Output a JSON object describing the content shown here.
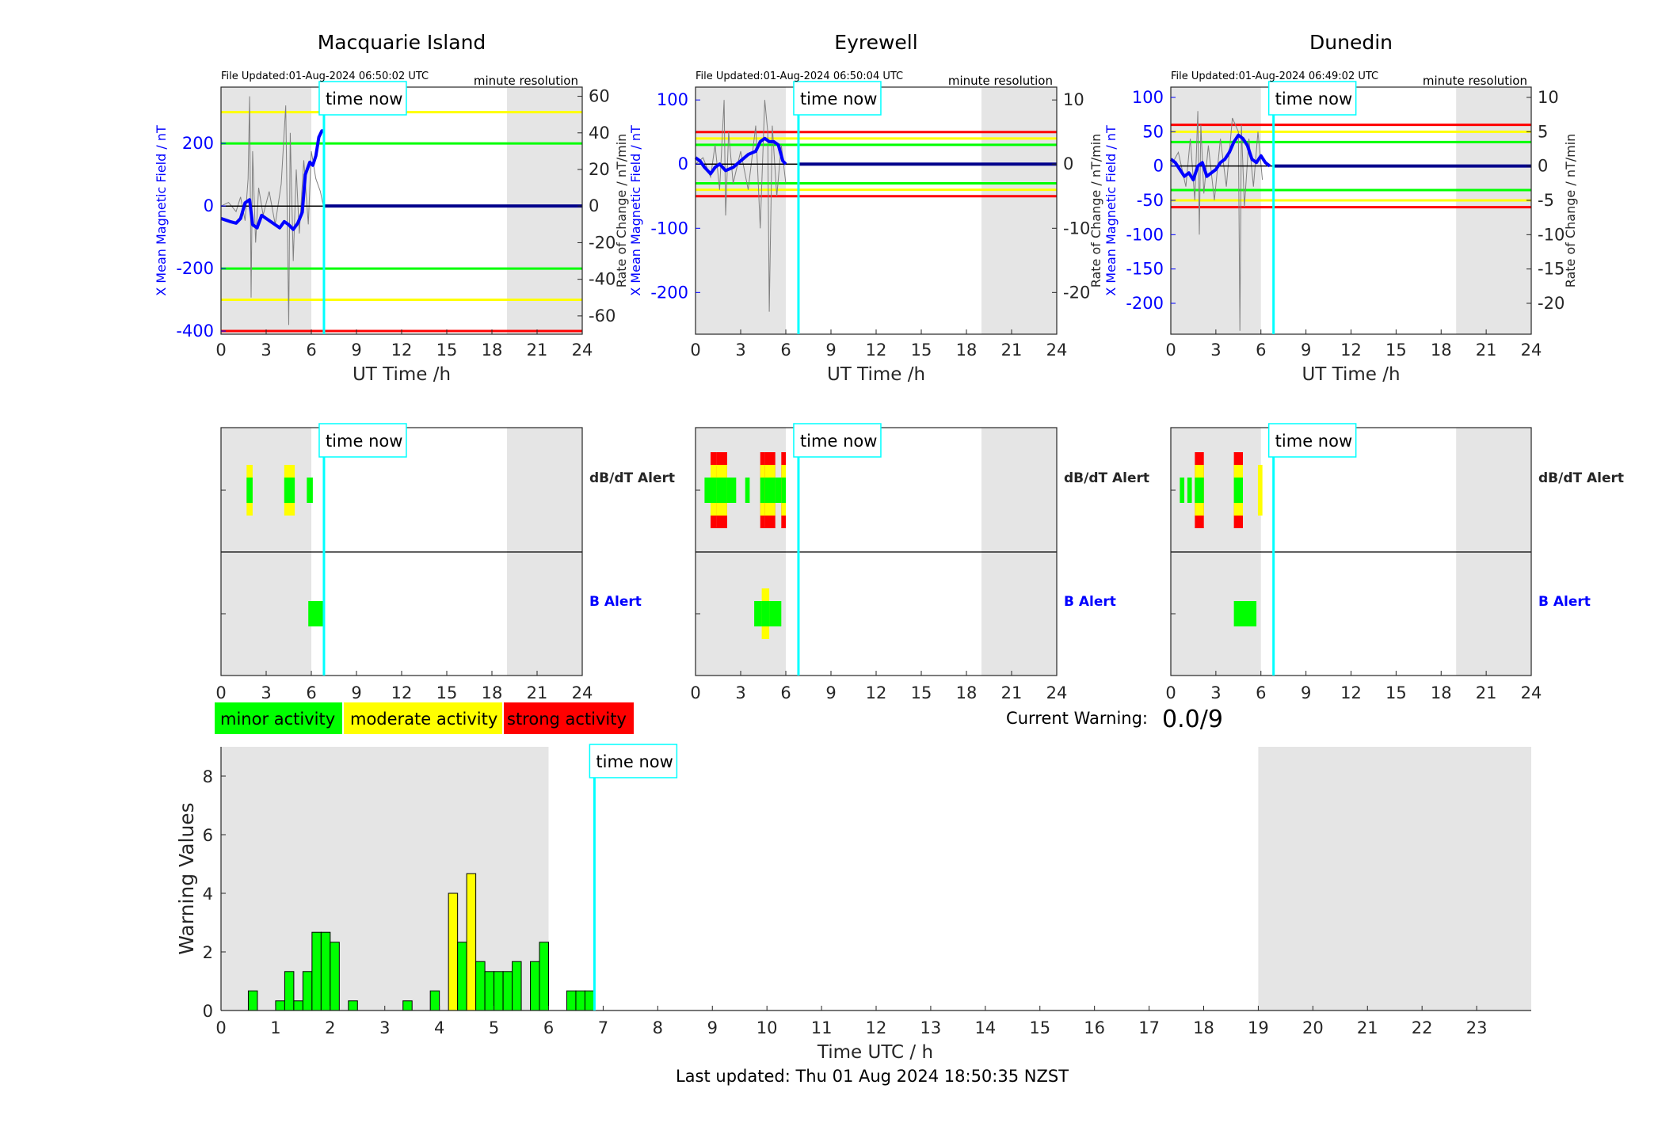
{
  "time_now_label": "time now",
  "time_now_hour": 6.84,
  "night_shading": [
    [
      0,
      6
    ],
    [
      19,
      24
    ]
  ],
  "stations": [
    {
      "name": "Macquarie Island",
      "file_updated": "File Updated:01-Aug-2024 06:50:02 UTC",
      "resolution": "minute resolution",
      "left_ylabel": "X Mean Magnetic Field / nT",
      "right_ylabel": "Rate of Change / nT/min",
      "xlabel": "UT Time /h",
      "dbdt_label": "dB/dT Alert",
      "b_label": "B Alert"
    },
    {
      "name": "Eyrewell",
      "file_updated": "File Updated:01-Aug-2024 06:50:04 UTC",
      "resolution": "minute resolution",
      "left_ylabel": "X Mean Magnetic Field / nT",
      "right_ylabel": "Rate of Change / nT/min",
      "xlabel": "UT Time /h",
      "dbdt_label": "dB/dT Alert",
      "b_label": "B Alert"
    },
    {
      "name": "Dunedin",
      "file_updated": "File Updated:01-Aug-2024 06:49:02 UTC",
      "resolution": "minute resolution",
      "left_ylabel": "X Mean Magnetic Field / nT",
      "right_ylabel": "Rate of Change / nT/min",
      "xlabel": "UT Time /h",
      "dbdt_label": "dB/dT Alert",
      "b_label": "B Alert"
    }
  ],
  "legend": {
    "minor": "minor activity",
    "moderate": "moderate activity",
    "strong": "strong activity",
    "colors": {
      "minor": "#00ff00",
      "moderate": "#ffff00",
      "strong": "#ff0000"
    }
  },
  "current_warning": {
    "label": "Current Warning:",
    "value": "0.0/9"
  },
  "warning_chart": {
    "xlabel": "Time UTC / h",
    "ylabel": "Warning Values"
  },
  "last_updated": "Last updated: Thu 01 Aug 2024 18:50:35 NZST",
  "chart_data": [
    {
      "type": "line",
      "station": "Macquarie Island",
      "xlim": [
        0,
        24
      ],
      "xticks": [
        0,
        3,
        6,
        9,
        12,
        15,
        18,
        21,
        24
      ],
      "ylim_left": [
        -410,
        380
      ],
      "yticks_left": [
        -400,
        -200,
        0,
        200
      ],
      "ylim_right": [
        -70,
        65
      ],
      "yticks_right": [
        -60,
        -40,
        -20,
        0,
        20,
        40,
        60
      ],
      "thresholds": [
        {
          "color": "#00ff00",
          "values": [
            200,
            -200
          ]
        },
        {
          "color": "#ffff00",
          "values": [
            300,
            -300
          ]
        },
        {
          "color": "#ff0000",
          "values": [
            -400
          ]
        }
      ],
      "series": [
        {
          "axis": "left",
          "color": "#0000ff",
          "x": [
            0,
            0.3,
            0.6,
            1,
            1.3,
            1.6,
            1.9,
            2.1,
            2.4,
            2.7,
            3,
            3.3,
            3.6,
            3.9,
            4.2,
            4.5,
            4.8,
            5.1,
            5.4,
            5.6,
            5.9,
            6.1,
            6.3,
            6.5,
            6.7,
            6.8
          ],
          "y": [
            -40,
            -45,
            -50,
            -55,
            -40,
            10,
            20,
            -60,
            -70,
            -30,
            -40,
            -50,
            -60,
            -70,
            -50,
            -60,
            -75,
            -55,
            -20,
            100,
            140,
            130,
            160,
            220,
            240,
            240
          ]
        },
        {
          "axis": "right",
          "color": "#808080",
          "x": [
            0,
            0.5,
            1,
            1.3,
            1.6,
            1.8,
            1.9,
            2.0,
            2.1,
            2.3,
            2.5,
            2.8,
            3.2,
            3.6,
            4.0,
            4.3,
            4.5,
            4.6,
            4.8,
            5.0,
            5.2,
            5.5,
            5.8,
            6.0,
            6.3,
            6.6,
            6.8
          ],
          "y": [
            0,
            2,
            -3,
            5,
            -8,
            15,
            60,
            -50,
            30,
            -20,
            10,
            -5,
            8,
            -10,
            12,
            55,
            -65,
            40,
            -30,
            20,
            -15,
            25,
            -10,
            30,
            15,
            8,
            0
          ]
        }
      ]
    },
    {
      "type": "line",
      "station": "Eyrewell",
      "xlim": [
        0,
        24
      ],
      "xticks": [
        0,
        3,
        6,
        9,
        12,
        15,
        18,
        21,
        24
      ],
      "ylim_left": [
        -265,
        120
      ],
      "yticks_left": [
        -200,
        -100,
        0,
        100
      ],
      "ylim_right": [
        -26.5,
        12
      ],
      "yticks_right": [
        -20,
        -10,
        0,
        10
      ],
      "thresholds": [
        {
          "color": "#00ff00",
          "values": [
            30,
            -30
          ]
        },
        {
          "color": "#ffff00",
          "values": [
            40,
            -40
          ]
        },
        {
          "color": "#ff0000",
          "values": [
            50,
            -50
          ]
        }
      ],
      "series": [
        {
          "axis": "left",
          "color": "#0000ff",
          "x": [
            0,
            0.3,
            0.6,
            1,
            1.3,
            1.6,
            2,
            2.5,
            3,
            3.5,
            4,
            4.3,
            4.6,
            4.9,
            5.2,
            5.5,
            5.8,
            6.0
          ],
          "y": [
            10,
            5,
            -5,
            -15,
            -5,
            0,
            -10,
            -5,
            5,
            15,
            20,
            35,
            40,
            35,
            35,
            30,
            5,
            0
          ]
        },
        {
          "axis": "right",
          "color": "#808080",
          "x": [
            0,
            0.5,
            1,
            1.3,
            1.6,
            1.9,
            2.0,
            2.2,
            2.5,
            3,
            3.5,
            4,
            4.3,
            4.6,
            4.8,
            4.9,
            5.1,
            5.4,
            5.7,
            6.0
          ],
          "y": [
            0,
            1,
            -2,
            3,
            -4,
            10,
            -8,
            5,
            -3,
            2,
            -4,
            6,
            -10,
            10,
            5,
            -23,
            6,
            -5,
            3,
            -3
          ]
        }
      ]
    },
    {
      "type": "line",
      "station": "Dunedin",
      "xlim": [
        0,
        24
      ],
      "xticks": [
        0,
        3,
        6,
        9,
        12,
        15,
        18,
        21,
        24
      ],
      "ylim_left": [
        -245,
        115
      ],
      "yticks_left": [
        -200,
        -150,
        -100,
        -50,
        0,
        50,
        100
      ],
      "ylim_right": [
        -24.5,
        11.5
      ],
      "yticks_right": [
        -20,
        -15,
        -10,
        -5,
        0,
        5,
        10
      ],
      "thresholds": [
        {
          "color": "#00ff00",
          "values": [
            35,
            -35
          ]
        },
        {
          "color": "#ffff00",
          "values": [
            50,
            -50
          ]
        },
        {
          "color": "#ff0000",
          "values": [
            60,
            -60
          ]
        }
      ],
      "series": [
        {
          "axis": "left",
          "color": "#0000ff",
          "x": [
            0,
            0.3,
            0.6,
            0.9,
            1.2,
            1.5,
            1.8,
            2.1,
            2.4,
            2.7,
            3,
            3.3,
            3.6,
            3.9,
            4.2,
            4.5,
            4.8,
            5.1,
            5.4,
            5.7,
            6.0,
            6.3,
            6.6
          ],
          "y": [
            10,
            5,
            -5,
            -15,
            -10,
            -20,
            0,
            5,
            -15,
            -10,
            -5,
            5,
            10,
            20,
            35,
            45,
            40,
            30,
            10,
            5,
            15,
            5,
            0
          ]
        },
        {
          "axis": "right",
          "color": "#808080",
          "x": [
            0,
            0.5,
            1,
            1.3,
            1.6,
            1.8,
            1.9,
            2.0,
            2.2,
            2.5,
            2.9,
            3.3,
            3.7,
            4.1,
            4.5,
            4.6,
            4.7,
            4.9,
            5.2,
            5.5,
            5.8,
            6.1
          ],
          "y": [
            0,
            2,
            -3,
            4,
            -5,
            8,
            -10,
            6,
            -4,
            3,
            -5,
            4,
            -3,
            7,
            5,
            -24,
            6,
            -6,
            4,
            -3,
            5,
            -2
          ]
        }
      ]
    },
    {
      "type": "bar",
      "title": "Warning Values",
      "xlim": [
        0,
        24
      ],
      "xticks": [
        0,
        1,
        2,
        3,
        4,
        5,
        6,
        7,
        8,
        9,
        10,
        11,
        12,
        13,
        14,
        15,
        16,
        17,
        18,
        19,
        20,
        21,
        22,
        23
      ],
      "ylim": [
        0,
        9
      ],
      "yticks": [
        0,
        2,
        4,
        6,
        8
      ],
      "bar_width_h": 0.1667,
      "bars": [
        {
          "x": 0.5,
          "value": 0.67,
          "level": "minor"
        },
        {
          "x": 1.0,
          "value": 0.33,
          "level": "minor"
        },
        {
          "x": 1.1667,
          "value": 1.33,
          "level": "minor"
        },
        {
          "x": 1.3333,
          "value": 0.33,
          "level": "minor"
        },
        {
          "x": 1.5,
          "value": 1.33,
          "level": "minor"
        },
        {
          "x": 1.6667,
          "value": 2.67,
          "level": "minor"
        },
        {
          "x": 1.8333,
          "value": 2.67,
          "level": "minor"
        },
        {
          "x": 2.0,
          "value": 2.33,
          "level": "minor"
        },
        {
          "x": 2.3333,
          "value": 0.33,
          "level": "minor"
        },
        {
          "x": 3.3333,
          "value": 0.33,
          "level": "minor"
        },
        {
          "x": 3.8333,
          "value": 0.67,
          "level": "minor"
        },
        {
          "x": 4.1667,
          "value": 4.0,
          "level": "moderate"
        },
        {
          "x": 4.3333,
          "value": 2.33,
          "level": "minor"
        },
        {
          "x": 4.5,
          "value": 4.67,
          "level": "moderate"
        },
        {
          "x": 4.6667,
          "value": 1.67,
          "level": "minor"
        },
        {
          "x": 4.8333,
          "value": 1.33,
          "level": "minor"
        },
        {
          "x": 5.0,
          "value": 1.33,
          "level": "minor"
        },
        {
          "x": 5.1667,
          "value": 1.33,
          "level": "minor"
        },
        {
          "x": 5.3333,
          "value": 1.67,
          "level": "minor"
        },
        {
          "x": 5.6667,
          "value": 1.67,
          "level": "minor"
        },
        {
          "x": 5.8333,
          "value": 2.33,
          "level": "minor"
        },
        {
          "x": 6.3333,
          "value": 0.67,
          "level": "minor"
        },
        {
          "x": 6.5,
          "value": 0.67,
          "level": "minor"
        },
        {
          "x": 6.6667,
          "value": 0.67,
          "level": "minor"
        }
      ]
    }
  ],
  "alerts": [
    {
      "station": "Macquarie Island",
      "dbdt": [
        {
          "start": 1.7,
          "end": 2.1,
          "levels": [
            "moderate",
            "minor"
          ]
        },
        {
          "start": 4.2,
          "end": 4.9,
          "levels": [
            "moderate",
            "minor"
          ]
        },
        {
          "start": 5.7,
          "end": 6.1,
          "levels": [
            "minor"
          ]
        }
      ],
      "b": [
        {
          "start": 5.8,
          "end": 6.9,
          "levels": [
            "minor"
          ]
        }
      ]
    },
    {
      "station": "Eyrewell",
      "dbdt": [
        {
          "start": 0.6,
          "end": 1.0,
          "levels": [
            "minor"
          ]
        },
        {
          "start": 1.0,
          "end": 1.4,
          "levels": [
            "strong",
            "moderate",
            "minor"
          ]
        },
        {
          "start": 1.4,
          "end": 2.1,
          "levels": [
            "strong",
            "moderate",
            "minor"
          ]
        },
        {
          "start": 2.1,
          "end": 2.7,
          "levels": [
            "minor"
          ]
        },
        {
          "start": 3.3,
          "end": 3.6,
          "levels": [
            "minor"
          ]
        },
        {
          "start": 4.3,
          "end": 4.6,
          "levels": [
            "strong",
            "moderate",
            "minor"
          ]
        },
        {
          "start": 4.6,
          "end": 5.3,
          "levels": [
            "strong",
            "moderate",
            "minor"
          ]
        },
        {
          "start": 5.3,
          "end": 5.7,
          "levels": [
            "minor"
          ]
        },
        {
          "start": 5.7,
          "end": 6.0,
          "levels": [
            "strong",
            "moderate",
            "minor"
          ]
        }
      ],
      "b": [
        {
          "start": 3.9,
          "end": 5.7,
          "levels": [
            "minor"
          ]
        },
        {
          "start": 4.4,
          "end": 4.9,
          "levels": [
            "moderate",
            "minor"
          ]
        }
      ]
    },
    {
      "station": "Dunedin",
      "dbdt": [
        {
          "start": 0.6,
          "end": 0.9,
          "levels": [
            "minor"
          ]
        },
        {
          "start": 1.1,
          "end": 1.4,
          "levels": [
            "minor"
          ]
        },
        {
          "start": 1.6,
          "end": 2.2,
          "levels": [
            "strong",
            "moderate",
            "minor"
          ]
        },
        {
          "start": 4.2,
          "end": 4.8,
          "levels": [
            "strong",
            "moderate",
            "minor"
          ]
        },
        {
          "start": 5.8,
          "end": 6.1,
          "levels": [
            "moderate"
          ]
        }
      ],
      "b": [
        {
          "start": 4.2,
          "end": 5.7,
          "levels": [
            "minor"
          ]
        }
      ]
    }
  ]
}
